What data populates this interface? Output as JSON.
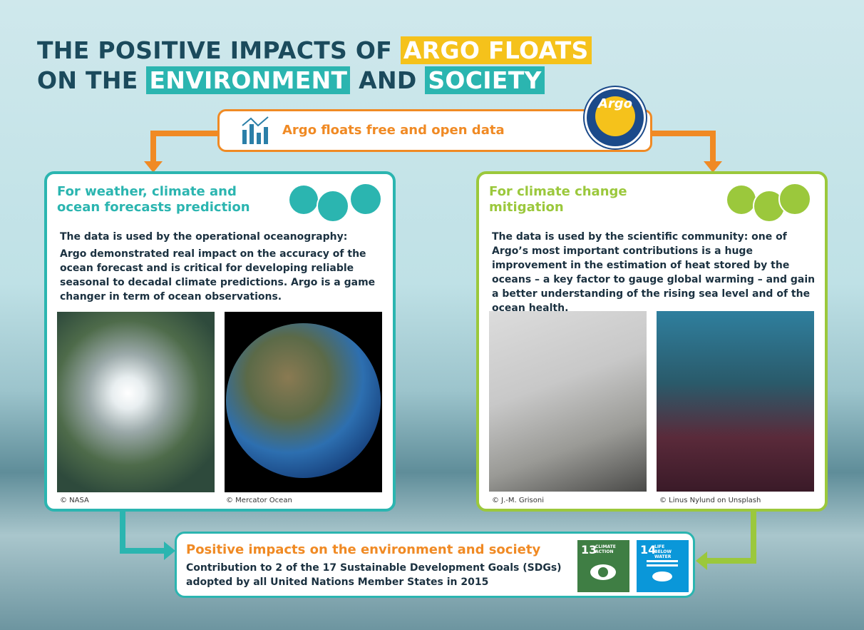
{
  "title": {
    "part1": "THE POSITIVE IMPACTS OF",
    "highlight1": "ARGO FLOATS",
    "part2": "ON THE",
    "highlight2": "ENVIRONMENT",
    "part3": "AND",
    "highlight3": "SOCIETY"
  },
  "source_box": {
    "text": "Argo floats free and open data",
    "logo": "Argo"
  },
  "left_panel": {
    "heading": "For weather, climate and ocean forecasts prediction",
    "lead": "The data is used by the operational oceanography:",
    "body": "Argo demonstrated real impact on the accuracy of the ocean forecast and is critical for developing reliable seasonal to decadal climate predictions.  Argo is a game changer in term of ocean observations.",
    "credits": [
      "© NASA",
      "© Mercator Ocean"
    ]
  },
  "right_panel": {
    "heading": "For climate change mitigation",
    "body": "The data is used by the scientific community: one of Argo’s most important contributions is a huge improvement in the estimation of heat stored by the oceans – a key factor to gauge global warming – and gain a better understanding of the rising sea level and of the ocean health.",
    "credits": [
      "© J.-M. Grisoni",
      "© Linus Nylund on Unsplash"
    ]
  },
  "impact_box": {
    "heading": "Positive impacts on the environment and society",
    "body": "Contribution to 2 of the 17 Sustainable Development Goals (SDGs) adopted by all United Nations Member States in 2015",
    "sdgs": [
      {
        "number": "13",
        "label": "CLIMATE ACTION"
      },
      {
        "number": "14",
        "label": "LIFE BELOW WATER"
      }
    ]
  }
}
